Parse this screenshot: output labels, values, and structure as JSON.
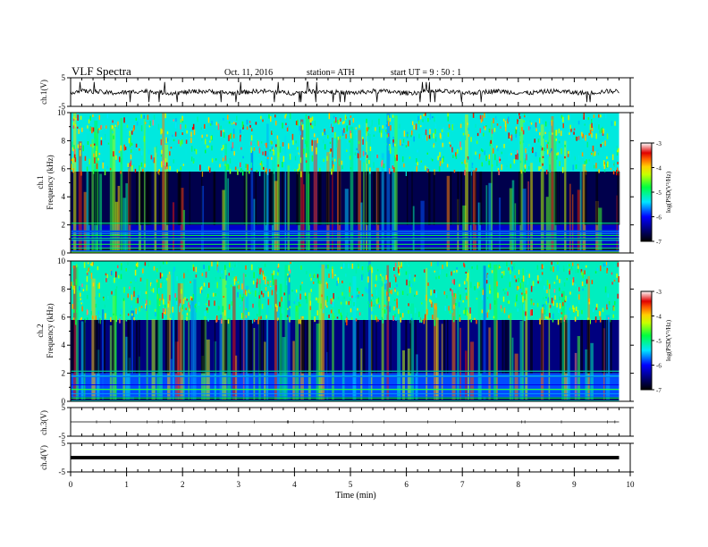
{
  "header": {
    "title": "VLF  Spectra",
    "date": "Oct. 11, 2016",
    "station": "station= ATH",
    "start_ut": "start  UT  =   9  : 50 : 1"
  },
  "chart_data": [
    {
      "type": "line",
      "panel": "ch1",
      "ylabel": "ch.1(V)",
      "ylim": [
        -5,
        5
      ],
      "yticks": [
        "5",
        "-5"
      ],
      "x_end_min": 9.8,
      "baseline_v": 0.0,
      "noise_v": 0.8,
      "spike_v": 3.5
    },
    {
      "type": "heatmap",
      "panel": "ch1-spectrogram",
      "ylabel": "Frequency  (kHz)",
      "channel_label": "ch.1",
      "ylim": [
        0,
        10
      ],
      "yticks": [
        "0",
        "2",
        "4",
        "6",
        "8",
        "10"
      ],
      "colorbar": {
        "label": "log(PSD(V²/Hz)",
        "range": [
          -7,
          -3
        ],
        "ticks": [
          "-3",
          "-4",
          "-5",
          "-6",
          "-7"
        ]
      },
      "bands": [
        {
          "from_khz": 0.0,
          "to_khz": 0.4,
          "log_psd": -6.8
        },
        {
          "from_khz": 0.4,
          "to_khz": 2.0,
          "log_psd": -6.2
        },
        {
          "from_khz": 2.0,
          "to_khz": 5.8,
          "log_psd": -6.7
        },
        {
          "from_khz": 5.8,
          "to_khz": 10.0,
          "log_psd": -5.3
        }
      ]
    },
    {
      "type": "heatmap",
      "panel": "ch2-spectrogram",
      "ylabel": "Frequency  (kHz)",
      "channel_label": "ch.2",
      "ylim": [
        0,
        10
      ],
      "yticks": [
        "0",
        "2",
        "4",
        "6",
        "8",
        "10"
      ],
      "colorbar": {
        "label": "log(PSD(V²/Hz)",
        "range": [
          -7,
          -3
        ],
        "ticks": [
          "-3",
          "-4",
          "-5",
          "-6",
          "-7"
        ]
      },
      "bands": [
        {
          "from_khz": 0.0,
          "to_khz": 0.3,
          "log_psd": -6.8
        },
        {
          "from_khz": 0.3,
          "to_khz": 2.0,
          "log_psd": -5.8
        },
        {
          "from_khz": 2.0,
          "to_khz": 5.8,
          "log_psd": -6.5
        },
        {
          "from_khz": 5.8,
          "to_khz": 10.0,
          "log_psd": -5.2
        }
      ]
    },
    {
      "type": "line",
      "panel": "ch3",
      "ylabel": "ch.3(V)",
      "ylim": [
        -5,
        5
      ],
      "yticks": [
        "5",
        "-5"
      ],
      "x_end_min": 9.8,
      "baseline_v": 0.0
    },
    {
      "type": "line",
      "panel": "ch4",
      "ylabel": "ch.4(V)",
      "ylim": [
        -5,
        5
      ],
      "yticks": [
        "5",
        "-5"
      ],
      "x_end_min": 9.8,
      "baseline_v": 0.0
    }
  ],
  "xaxis": {
    "label": "Time  (min)",
    "range": [
      0,
      10
    ],
    "ticks": [
      "0",
      "1",
      "2",
      "3",
      "4",
      "5",
      "6",
      "7",
      "8",
      "9",
      "10"
    ]
  }
}
